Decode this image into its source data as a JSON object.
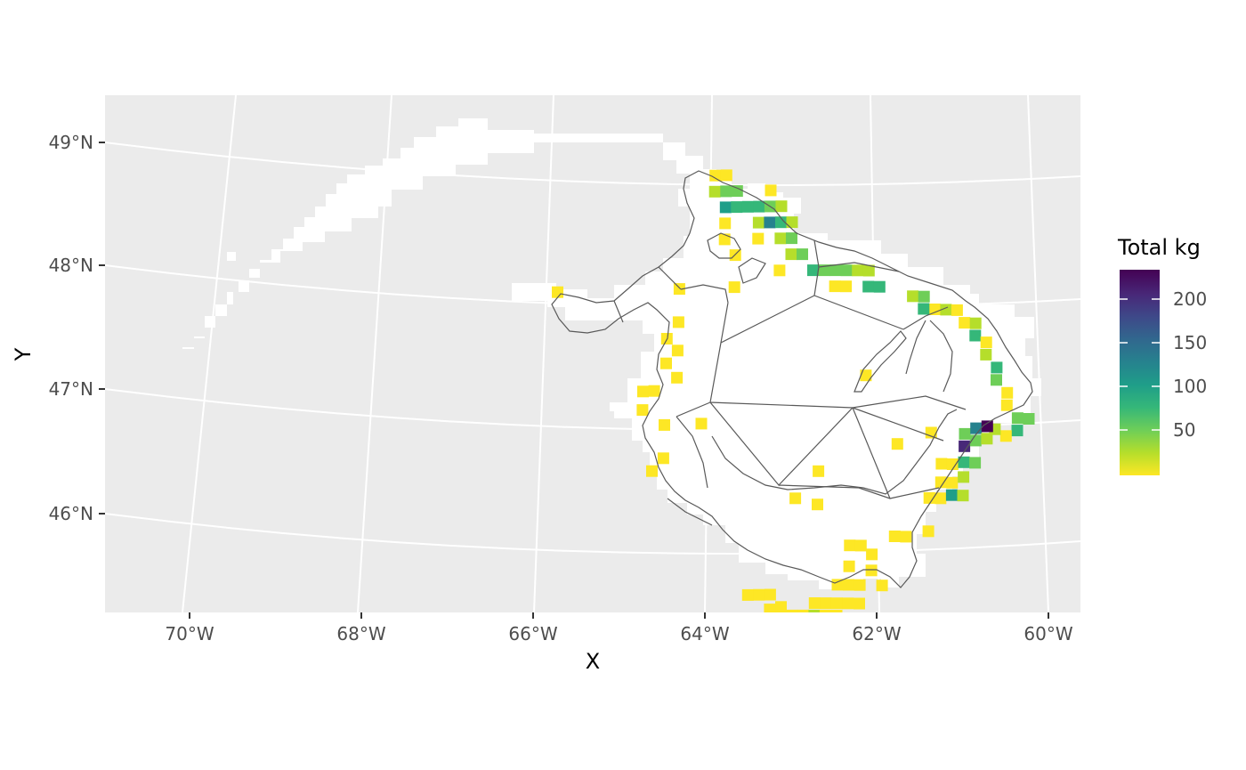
{
  "chart_data": {
    "type": "heatmap",
    "title": "",
    "xlabel": "X",
    "ylabel": "Y",
    "x_ticks": [
      "70°W",
      "68°W",
      "66°W",
      "64°W",
      "62°W",
      "60°W"
    ],
    "y_ticks": [
      "46°N",
      "47°N",
      "48°N",
      "49°N"
    ],
    "legend": {
      "title": "Total kg",
      "labels": [
        "200",
        "150",
        "100",
        "50"
      ],
      "values": [
        200,
        150,
        100,
        50
      ],
      "range": [
        1,
        235
      ],
      "palette": "viridis (reversed: yellow = low, dark purple = high)",
      "placement": "right"
    },
    "projection": "conic (curved graticule)",
    "grid": true,
    "background_color": "#ebebeb",
    "coverage_color": "#ffffff",
    "region_outline_color": "#595959",
    "colors": [
      "#fde725",
      "#b5de2b",
      "#6ece58",
      "#35b779",
      "#1f9e89",
      "#26828e",
      "#31688e",
      "#3e4989",
      "#482878",
      "#440154"
    ],
    "cells": [
      [
        -63.95,
        48.73,
        1
      ],
      [
        -63.82,
        48.73,
        3
      ],
      [
        -63.95,
        48.6,
        25
      ],
      [
        -63.82,
        48.6,
        42
      ],
      [
        -63.69,
        48.6,
        28
      ],
      [
        -63.3,
        48.6,
        5
      ],
      [
        -63.82,
        48.47,
        85
      ],
      [
        -63.69,
        48.47,
        60
      ],
      [
        -63.56,
        48.47,
        70
      ],
      [
        -63.43,
        48.47,
        55
      ],
      [
        -63.3,
        48.47,
        45
      ],
      [
        -63.17,
        48.47,
        8
      ],
      [
        -63.82,
        48.34,
        5
      ],
      [
        -63.43,
        48.34,
        20
      ],
      [
        -63.3,
        48.34,
        110
      ],
      [
        -63.17,
        48.34,
        65
      ],
      [
        -63.04,
        48.34,
        10
      ],
      [
        -63.82,
        48.21,
        3
      ],
      [
        -63.43,
        48.21,
        2
      ],
      [
        -63.17,
        48.21,
        12
      ],
      [
        -63.04,
        48.21,
        30
      ],
      [
        -63.69,
        48.08,
        4
      ],
      [
        -63.04,
        48.08,
        25
      ],
      [
        -62.91,
        48.08,
        40
      ],
      [
        -63.17,
        47.95,
        3
      ],
      [
        -62.78,
        47.95,
        70
      ],
      [
        -62.65,
        47.95,
        45
      ],
      [
        -62.52,
        47.95,
        38
      ],
      [
        -62.39,
        47.95,
        35
      ],
      [
        -62.26,
        47.95,
        8
      ],
      [
        -62.13,
        47.95,
        15
      ],
      [
        -62.52,
        47.82,
        6
      ],
      [
        -62.39,
        47.82,
        5
      ],
      [
        -62.13,
        47.82,
        55
      ],
      [
        -62.0,
        47.82,
        50
      ],
      [
        -63.69,
        47.82,
        3
      ],
      [
        -64.33,
        47.82,
        2
      ],
      [
        -65.75,
        47.85,
        2
      ],
      [
        -61.61,
        47.75,
        20
      ],
      [
        -61.48,
        47.75,
        30
      ],
      [
        -61.35,
        47.65,
        5
      ],
      [
        -61.22,
        47.65,
        10
      ],
      [
        -61.48,
        47.65,
        60
      ],
      [
        -61.09,
        47.65,
        3
      ],
      [
        -61.0,
        47.55,
        6
      ],
      [
        -60.87,
        47.55,
        12
      ],
      [
        -60.87,
        47.45,
        70
      ],
      [
        -60.74,
        47.4,
        2
      ],
      [
        -60.74,
        47.3,
        12
      ],
      [
        -60.61,
        47.2,
        60
      ],
      [
        -60.61,
        47.1,
        30
      ],
      [
        -60.48,
        47.0,
        5
      ],
      [
        -60.48,
        46.9,
        2
      ],
      [
        -60.35,
        46.8,
        30
      ],
      [
        -60.22,
        46.8,
        40
      ],
      [
        -60.35,
        46.7,
        50
      ],
      [
        -60.48,
        46.65,
        3
      ],
      [
        -60.61,
        46.7,
        15
      ],
      [
        -64.33,
        47.55,
        3
      ],
      [
        -64.46,
        47.42,
        2
      ],
      [
        -64.33,
        47.32,
        4
      ],
      [
        -64.46,
        47.22,
        3
      ],
      [
        -64.33,
        47.1,
        3
      ],
      [
        -64.72,
        47.0,
        2
      ],
      [
        -64.59,
        47.0,
        2
      ],
      [
        -64.72,
        46.85,
        4
      ],
      [
        -64.46,
        46.72,
        3
      ],
      [
        -64.03,
        46.72,
        5
      ],
      [
        -64.46,
        46.45,
        2
      ],
      [
        -64.59,
        46.35,
        2
      ],
      [
        -62.13,
        47.1,
        2
      ],
      [
        -61.74,
        46.55,
        3
      ],
      [
        -61.35,
        46.65,
        2
      ],
      [
        -61.22,
        46.4,
        3
      ],
      [
        -61.09,
        46.4,
        2
      ],
      [
        -61.22,
        46.25,
        2
      ],
      [
        -61.09,
        46.25,
        2
      ],
      [
        -61.35,
        46.12,
        2
      ],
      [
        -61.22,
        46.12,
        3
      ],
      [
        -60.96,
        46.65,
        40
      ],
      [
        -60.83,
        46.7,
        120
      ],
      [
        -60.96,
        46.55,
        200
      ],
      [
        -60.7,
        46.72,
        235
      ],
      [
        -60.83,
        46.6,
        35
      ],
      [
        -60.7,
        46.62,
        25
      ],
      [
        -60.96,
        46.42,
        55
      ],
      [
        -60.83,
        46.42,
        30
      ],
      [
        -60.96,
        46.3,
        20
      ],
      [
        -61.09,
        46.15,
        90
      ],
      [
        -60.96,
        46.15,
        15
      ],
      [
        -61.61,
        45.8,
        4
      ],
      [
        -61.74,
        45.8,
        2
      ],
      [
        -61.35,
        45.85,
        3
      ],
      [
        -62.26,
        45.72,
        3
      ],
      [
        -62.13,
        45.72,
        2
      ],
      [
        -62.0,
        45.65,
        4
      ],
      [
        -62.26,
        45.55,
        4
      ],
      [
        -62.0,
        45.52,
        3
      ],
      [
        -62.39,
        45.4,
        3
      ],
      [
        -62.26,
        45.4,
        5
      ],
      [
        -62.13,
        45.4,
        3
      ],
      [
        -61.87,
        45.4,
        2
      ],
      [
        -62.65,
        45.25,
        3
      ],
      [
        -62.52,
        45.25,
        4
      ],
      [
        -62.39,
        45.25,
        5
      ],
      [
        -62.26,
        45.25,
        4
      ],
      [
        -62.13,
        45.25,
        2
      ],
      [
        -62.78,
        45.15,
        2
      ],
      [
        -62.65,
        45.15,
        20
      ],
      [
        -62.52,
        45.15,
        4
      ],
      [
        -62.39,
        45.15,
        3
      ],
      [
        -62.91,
        45.15,
        2
      ],
      [
        -63.43,
        45.32,
        3
      ],
      [
        -63.3,
        45.32,
        3
      ],
      [
        -63.17,
        45.32,
        2
      ],
      [
        -63.04,
        45.22,
        3
      ],
      [
        -63.17,
        45.2,
        5
      ],
      [
        -63.17,
        45.1,
        2
      ],
      [
        -62.52,
        45.05,
        4
      ],
      [
        -62.39,
        45.05,
        4
      ],
      [
        -62.26,
        45.05,
        3
      ],
      [
        -62.13,
        45.05,
        3
      ],
      [
        -61.48,
        45.05,
        5
      ],
      [
        -61.48,
        44.95,
        2
      ],
      [
        -62.65,
        46.32,
        2
      ],
      [
        -62.91,
        46.1,
        2
      ],
      [
        -62.65,
        46.05,
        3
      ]
    ]
  }
}
